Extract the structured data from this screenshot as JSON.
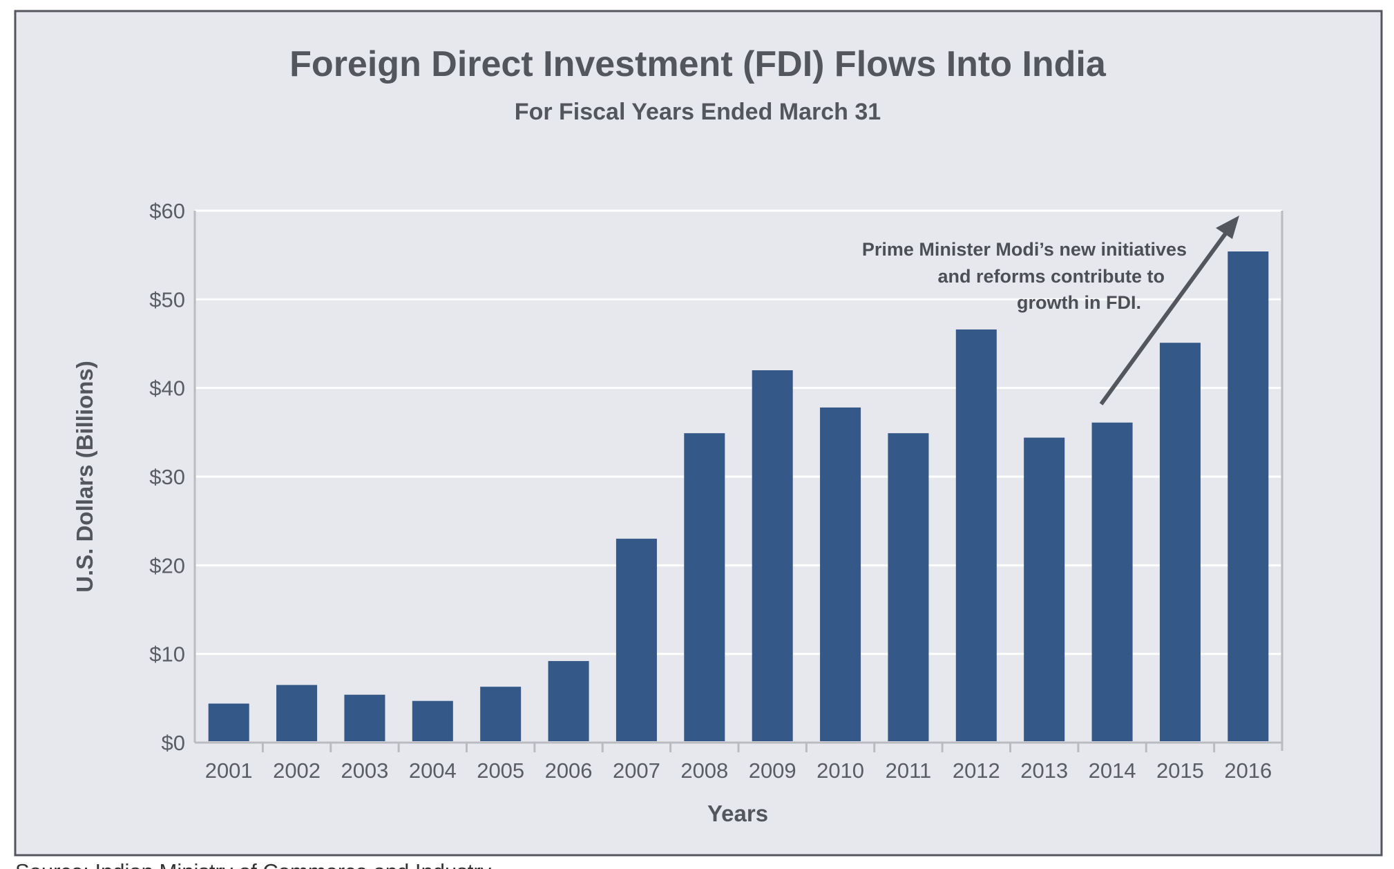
{
  "chart_data": {
    "type": "bar",
    "title": "Foreign Direct Investment (FDI) Flows Into India",
    "subtitle": "For Fiscal Years Ended March 31",
    "xlabel": "Years",
    "ylabel": "U.S. Dollars (Billions)",
    "ylim": [
      0,
      60
    ],
    "yticks": [
      0,
      10,
      20,
      30,
      40,
      50,
      60
    ],
    "ytick_labels": [
      "$0",
      "$10",
      "$20",
      "$30",
      "$40",
      "$50",
      "$60"
    ],
    "grid": true,
    "categories": [
      "2001",
      "2002",
      "2003",
      "2004",
      "2005",
      "2006",
      "2007",
      "2008",
      "2009",
      "2010",
      "2011",
      "2012",
      "2013",
      "2014",
      "2015",
      "2016"
    ],
    "values": [
      4.4,
      6.5,
      5.4,
      4.7,
      6.3,
      9.2,
      23.0,
      34.9,
      42.0,
      37.8,
      34.9,
      46.6,
      34.4,
      36.1,
      45.1,
      55.4
    ],
    "bar_color": "#345988",
    "annotation": {
      "lines": [
        "Prime Minister Modi’s new initiatives",
        "and reforms contribute to",
        "growth in FDI."
      ],
      "arrow": "up-right arrow from 2014 toward top of 2016"
    }
  },
  "footer": {
    "source": "Source: Indian Ministry of Commerce and Industry"
  },
  "colors": {
    "background": "#e7e8ed",
    "frame": "#53565d",
    "grid": "#ffffff",
    "text": "#53565d"
  }
}
